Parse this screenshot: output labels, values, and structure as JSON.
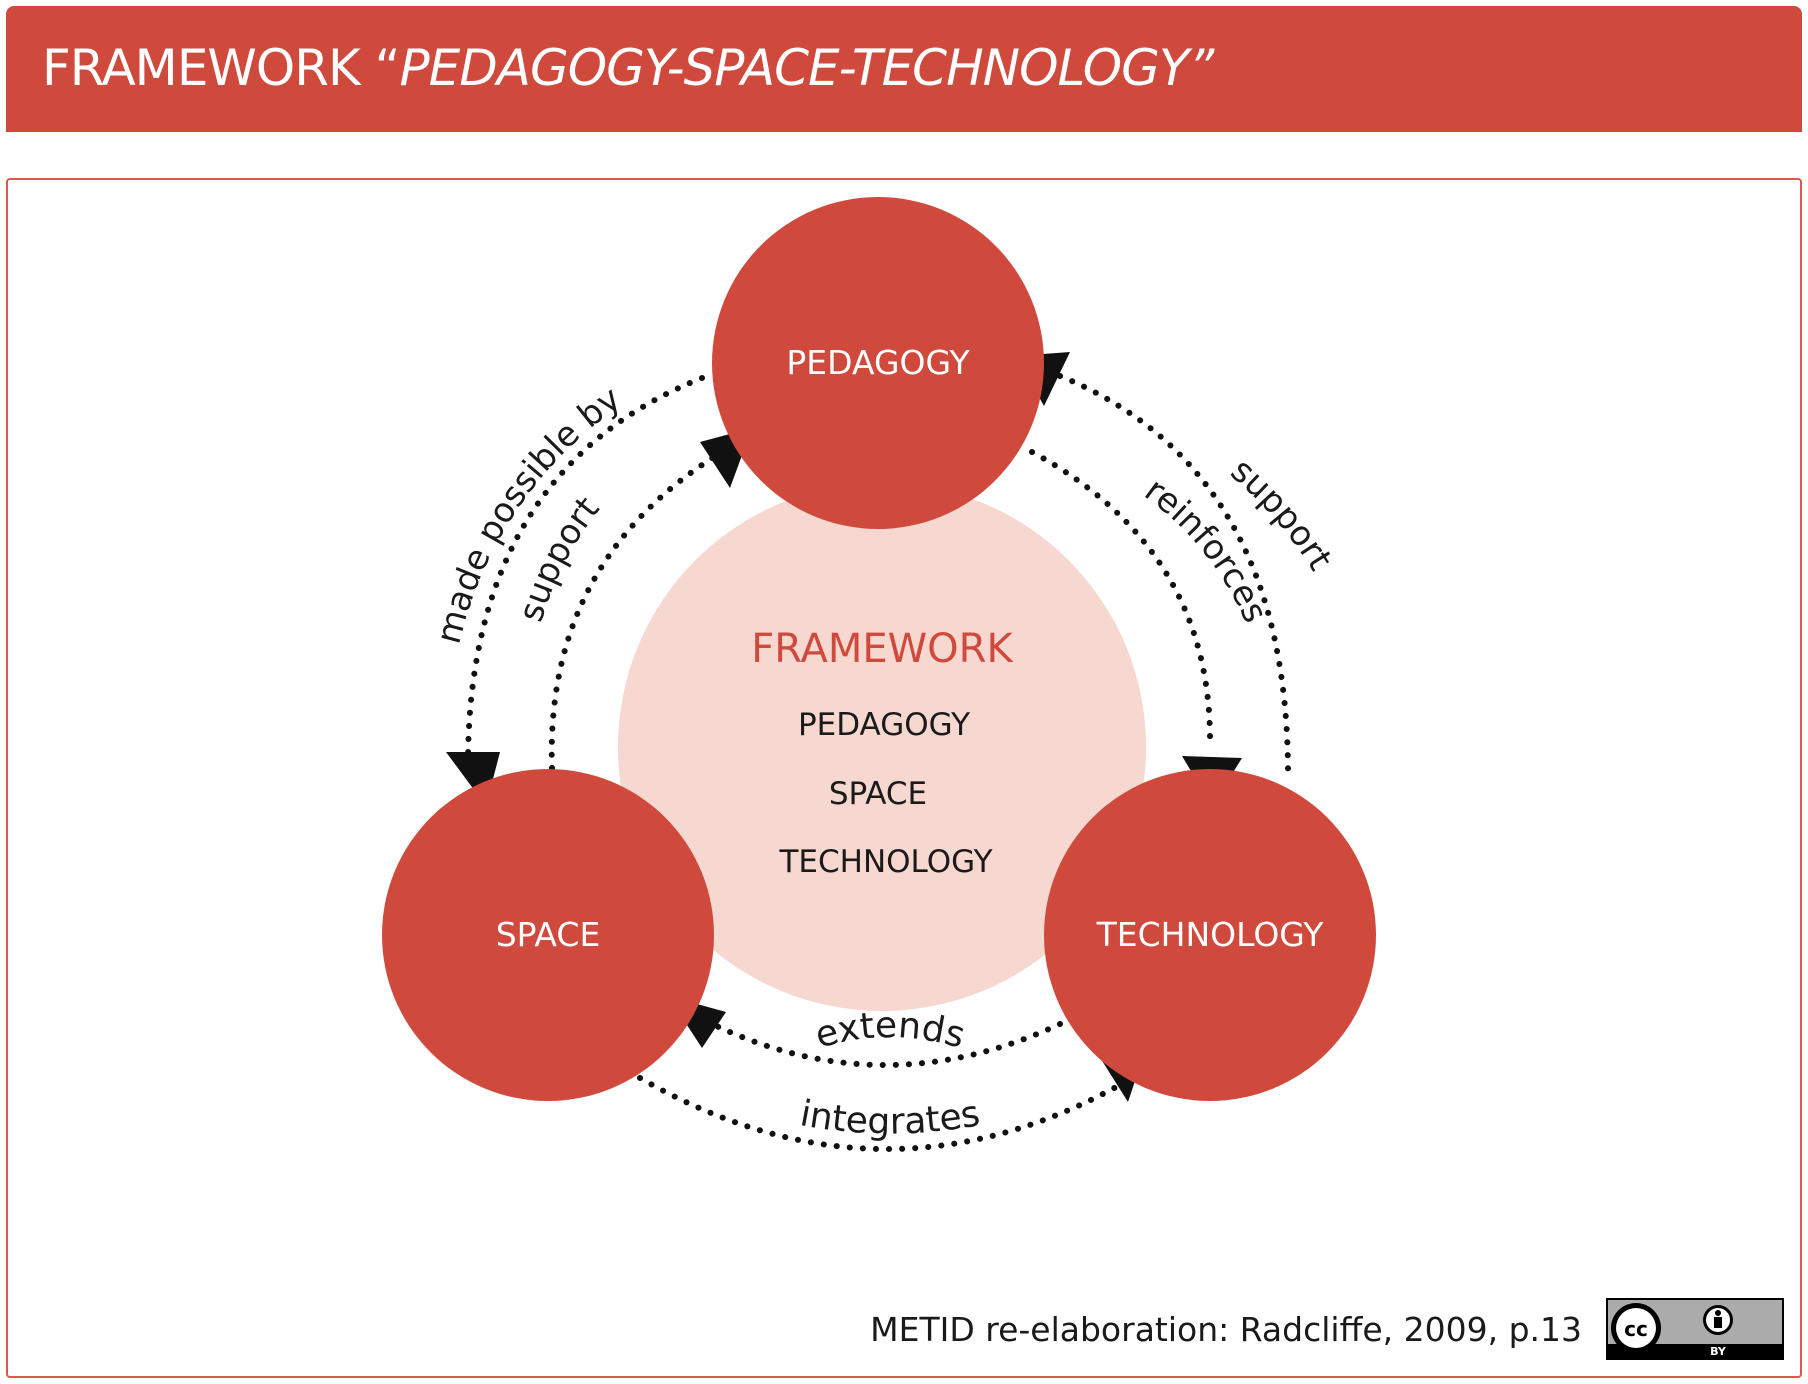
{
  "header": {
    "title_plain": "FRAMEWORK “",
    "title_italic": "PEDAGOGY-SPACE-TECHNOLOGY”"
  },
  "nodes": {
    "pedagogy": "PEDAGOGY",
    "space": "SPACE",
    "technology": "TECHNOLOGY"
  },
  "center": {
    "heading": "FRAMEWORK",
    "items": [
      "PEDAGOGY",
      "SPACE",
      "TECHNOLOGY"
    ]
  },
  "relations": {
    "made_possible_by": "made possible by",
    "support_left": "support",
    "reinforces": "reinforces",
    "support_right": "support",
    "extends": "extends",
    "integrates": "integrates"
  },
  "footer": {
    "credit": "METID re-elaboration: Radcliffe, 2009, p.13",
    "license_badge_label": "BY",
    "license_cc_label": "cc"
  },
  "colors": {
    "accent_red": "#cf4a3d",
    "center_fill": "#f7d8d0",
    "text_dark": "#1a1a1a",
    "white": "#ffffff"
  }
}
